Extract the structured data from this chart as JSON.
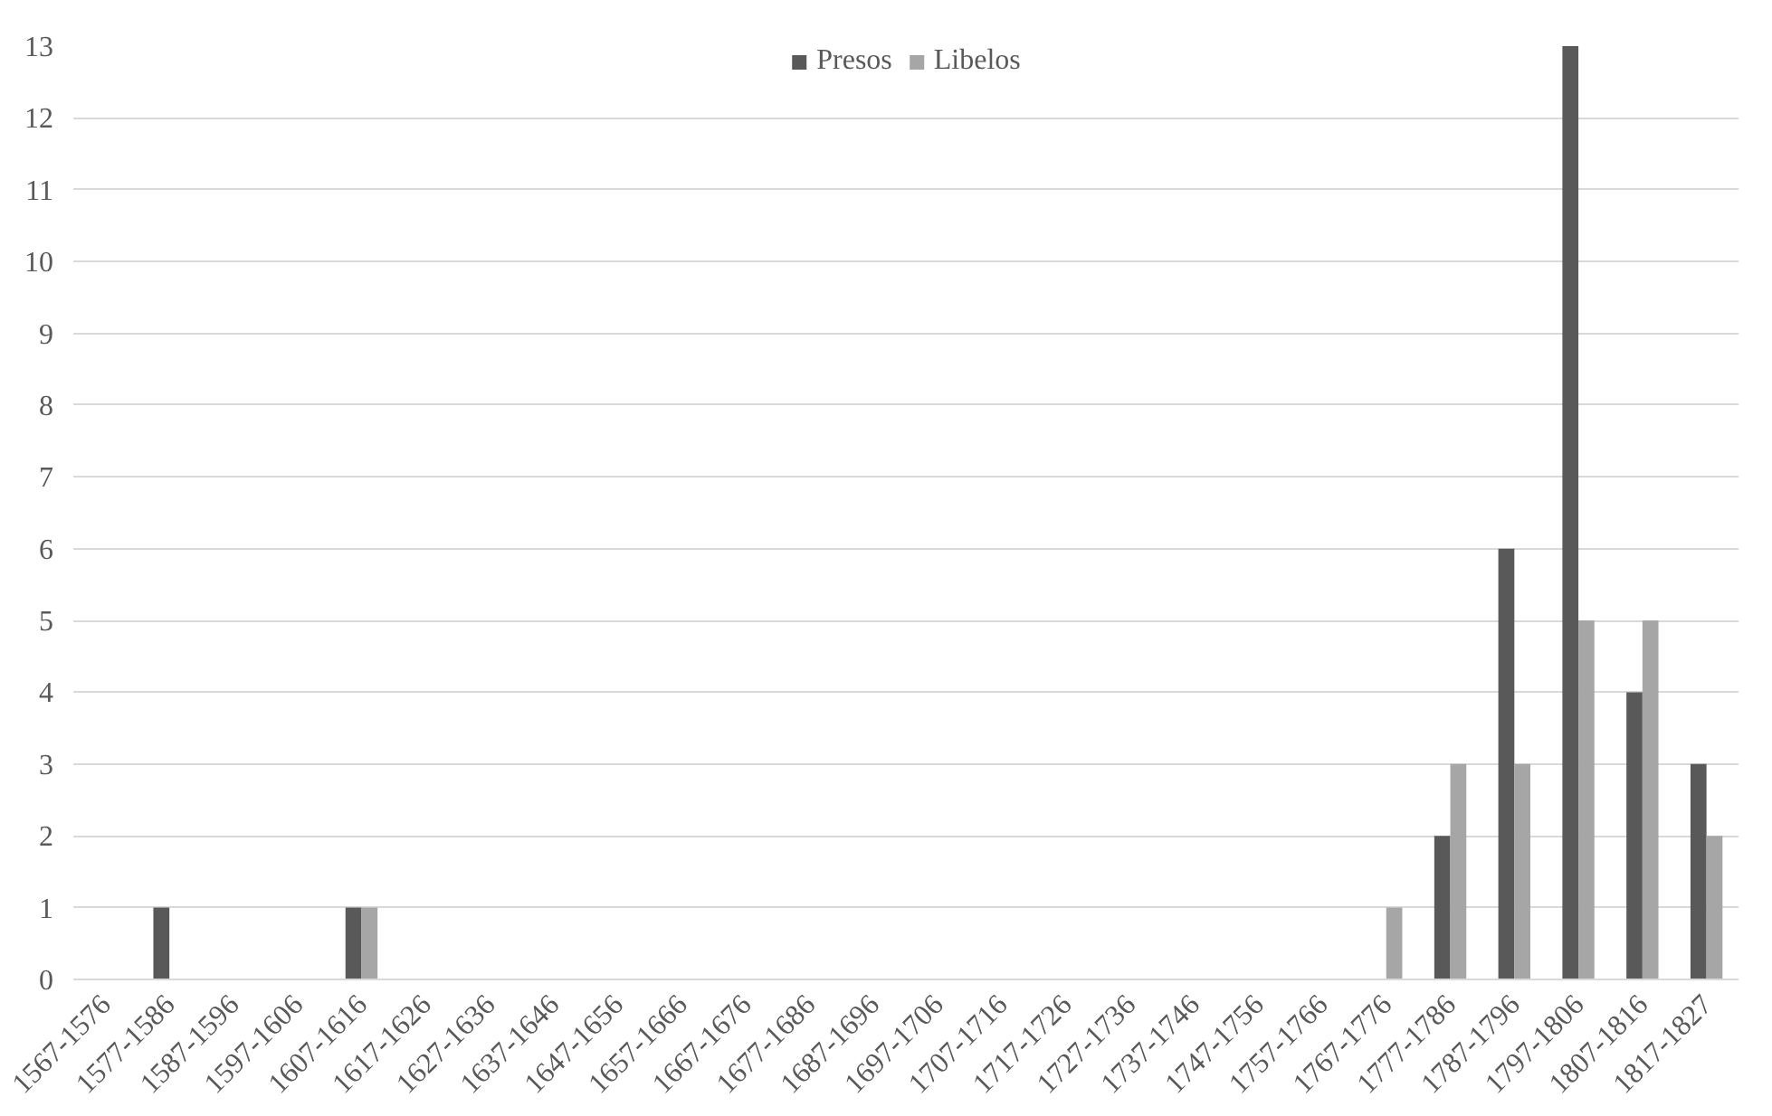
{
  "chart_data": {
    "type": "bar",
    "categories": [
      "1567-1576",
      "1577-1586",
      "1587-1596",
      "1597-1606",
      "1607-1616",
      "1617-1626",
      "1627-1636",
      "1637-1646",
      "1647-1656",
      "1657-1666",
      "1667-1676",
      "1677-1686",
      "1687-1696",
      "1697-1706",
      "1707-1716",
      "1717-1726",
      "1727-1736",
      "1737-1746",
      "1747-1756",
      "1757-1766",
      "1767-1776",
      "1777-1786",
      "1787-1796",
      "1797-1806",
      "1807-1816",
      "1817-1827"
    ],
    "series": [
      {
        "name": "Presos",
        "color": "#595959",
        "values": [
          0,
          1,
          0,
          0,
          1,
          0,
          0,
          0,
          0,
          0,
          0,
          0,
          0,
          0,
          0,
          0,
          0,
          0,
          0,
          0,
          0,
          2,
          6,
          13,
          4,
          3
        ]
      },
      {
        "name": "Libelos",
        "color": "#a6a6a6",
        "values": [
          0,
          0,
          0,
          0,
          1,
          0,
          0,
          0,
          0,
          0,
          0,
          0,
          0,
          0,
          0,
          0,
          0,
          0,
          0,
          0,
          1,
          3,
          3,
          5,
          5,
          2
        ]
      }
    ],
    "ylim": [
      0,
      13
    ],
    "yticks": [
      0,
      1,
      2,
      3,
      4,
      5,
      6,
      7,
      8,
      9,
      10,
      11,
      12,
      13
    ],
    "grid": "y",
    "legend": "top"
  }
}
